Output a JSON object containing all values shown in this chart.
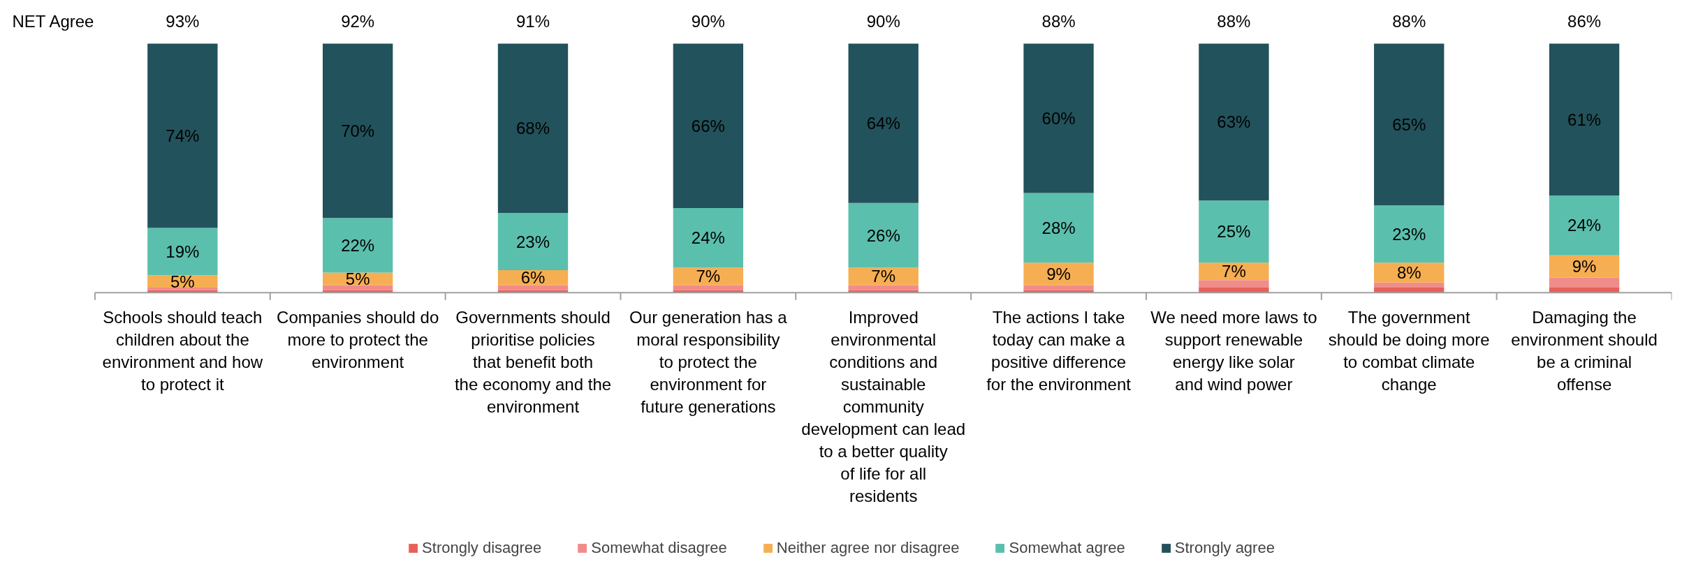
{
  "chart_data": {
    "type": "bar",
    "stacked": true,
    "legend": "bottom",
    "grid": false,
    "categories": [
      "Schools should teach children about the environment and how to protect it",
      "Companies should do more to protect the environment",
      "Governments should prioritise policies that benefit both the economy and the environment",
      "Our generation has a moral responsibility to protect the environment for future generations",
      "Improved environmental conditions and sustainable community development can lead to a better quality of life for all residents",
      "The actions I take today can make a positive difference for the environment",
      "We need more laws to support renewable energy like solar and wind power",
      "The government should be doing more to combat climate change",
      "Damaging the environment should be a criminal offense"
    ],
    "series": [
      {
        "name": "Strongly disagree",
        "color": "#e8605a",
        "values": [
          1,
          1,
          1,
          1,
          1,
          1,
          2,
          2,
          2
        ]
      },
      {
        "name": "Somewhat disagree",
        "color": "#f08c8a",
        "values": [
          1,
          2,
          2,
          2,
          2,
          2,
          3,
          2,
          4
        ]
      },
      {
        "name": "Neither agree nor disagree",
        "color": "#f6ae52",
        "values": [
          5,
          5,
          6,
          7,
          7,
          9,
          7,
          8,
          9
        ],
        "value_labels": [
          "5%",
          "5%",
          "6%",
          "7%",
          "7%",
          "9%",
          "7%",
          "8%",
          "9%"
        ]
      },
      {
        "name": "Somewhat agree",
        "color": "#5bbfad",
        "values": [
          19,
          22,
          23,
          24,
          26,
          28,
          25,
          23,
          24
        ],
        "value_labels": [
          "19%",
          "22%",
          "23%",
          "24%",
          "26%",
          "28%",
          "25%",
          "23%",
          "24%"
        ]
      },
      {
        "name": "Strongly agree",
        "color": "#22525b",
        "values": [
          74,
          70,
          68,
          66,
          64,
          60,
          63,
          65,
          61
        ],
        "value_labels": [
          "74%",
          "70%",
          "68%",
          "66%",
          "64%",
          "60%",
          "63%",
          "65%",
          "61%"
        ]
      }
    ],
    "annotations": [
      "NET Agree",
      "93%",
      "92%",
      "91%",
      "90%",
      "90%",
      "88%",
      "88%",
      "88%",
      "86%"
    ]
  }
}
